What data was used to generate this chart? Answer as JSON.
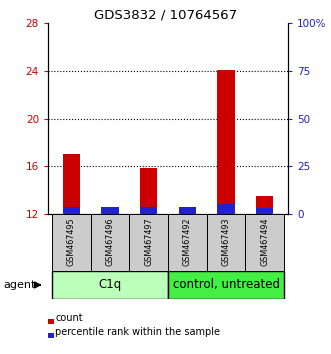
{
  "title": "GDS3832 / 10764567",
  "samples": [
    "GSM467495",
    "GSM467496",
    "GSM467497",
    "GSM467492",
    "GSM467493",
    "GSM467494"
  ],
  "count_values": [
    17.0,
    12.2,
    15.85,
    12.3,
    24.1,
    13.5
  ],
  "percentile_values": [
    3.5,
    3.8,
    3.5,
    3.8,
    5.5,
    3.2
  ],
  "bar_bottom": 12.0,
  "ylim_left": [
    12,
    28
  ],
  "yticks_left": [
    12,
    16,
    20,
    24,
    28
  ],
  "ylim_right": [
    0,
    100
  ],
  "yticks_right": [
    0,
    25,
    50,
    75,
    100
  ],
  "ytick_labels_right": [
    "0",
    "25",
    "50",
    "75",
    "100%"
  ],
  "count_color": "#cc0000",
  "percentile_color": "#2222cc",
  "grid_yticks": [
    16,
    20,
    24
  ],
  "xlabel_color_left": "#cc0000",
  "xlabel_color_right": "#2222bb",
  "agent_label": "agent",
  "legend_count": "count",
  "legend_percentile": "percentile rank within the sample",
  "sample_bg_color": "#cccccc",
  "c1q_color": "#bbffbb",
  "ctrl_color": "#44ee44",
  "plot_bg_color": "#ffffff",
  "c1q_label": "C1q",
  "ctrl_label": "control, untreated"
}
